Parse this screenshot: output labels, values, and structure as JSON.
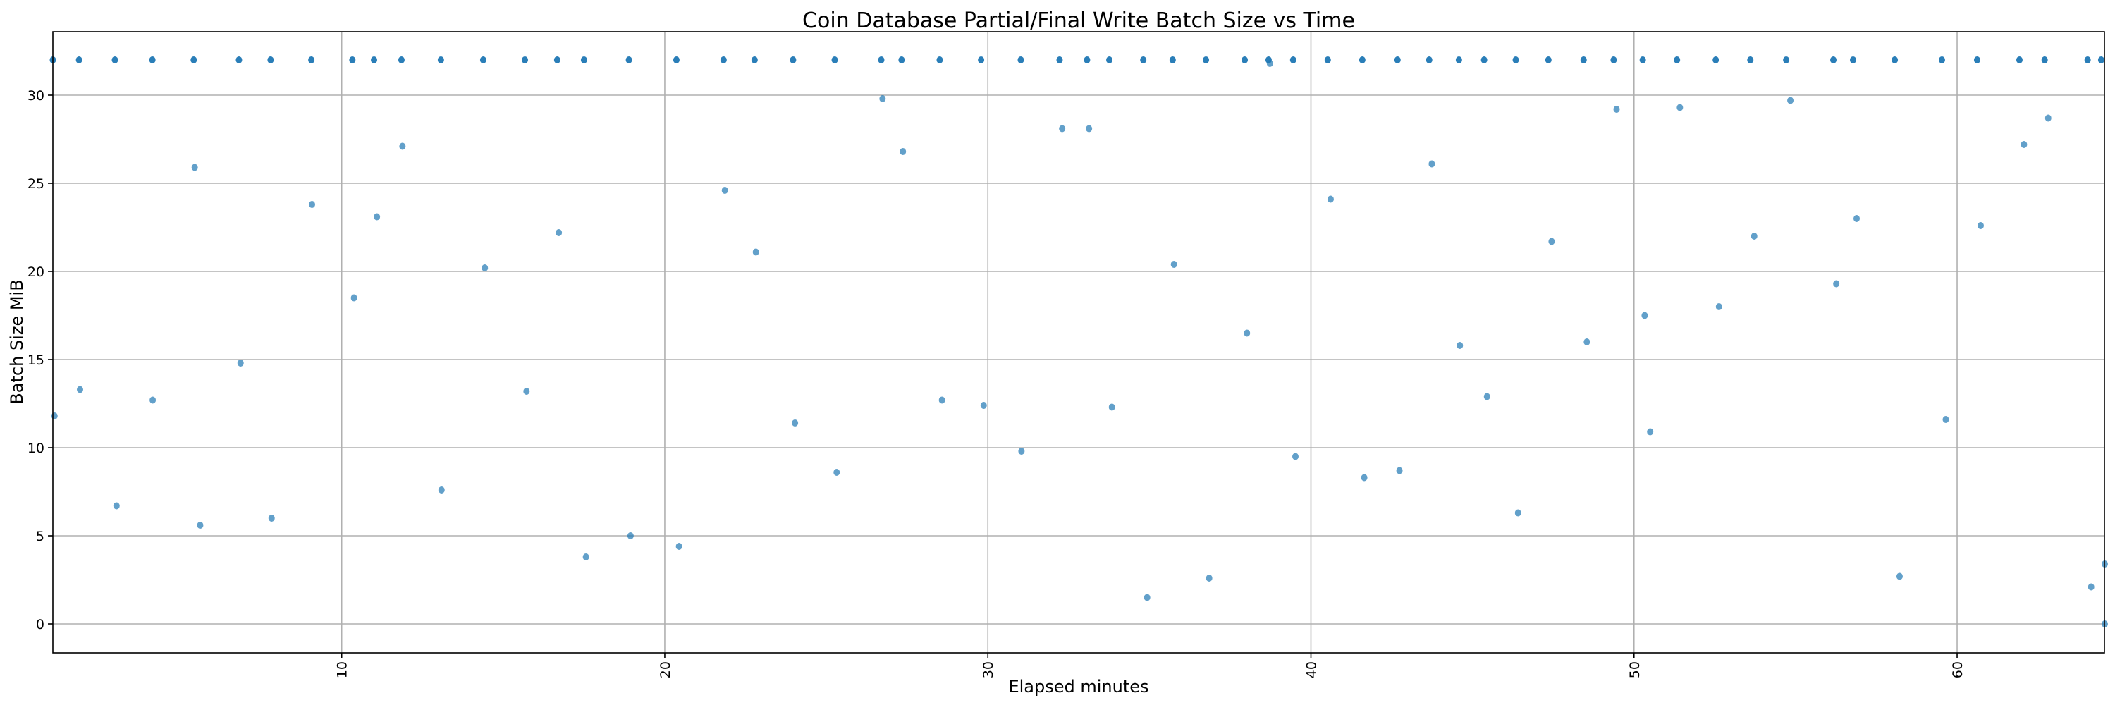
{
  "chart_data": {
    "type": "scatter",
    "title": "Coin Database Partial/Final Write Batch Size vs Time",
    "xlabel": "Elapsed minutes",
    "ylabel": "Batch Size MiB",
    "xlim": [
      1.06,
      64.56
    ],
    "ylim": [
      -1.64,
      33.6
    ],
    "xticks": [
      10,
      20,
      30,
      40,
      50,
      60
    ],
    "yticks": [
      0,
      5,
      10,
      15,
      20,
      25,
      30
    ],
    "grid": true,
    "legend": "none",
    "color": "#1f77b4",
    "points": [
      [
        1.06,
        32
      ],
      [
        1.87,
        32
      ],
      [
        2.98,
        32
      ],
      [
        4.14,
        32
      ],
      [
        5.42,
        32
      ],
      [
        6.82,
        32
      ],
      [
        7.8,
        32
      ],
      [
        9.06,
        32
      ],
      [
        10.33,
        32
      ],
      [
        11.0,
        32
      ],
      [
        11.85,
        32
      ],
      [
        13.07,
        32
      ],
      [
        14.38,
        32
      ],
      [
        15.67,
        32
      ],
      [
        16.67,
        32
      ],
      [
        17.5,
        32
      ],
      [
        18.89,
        32
      ],
      [
        20.36,
        32
      ],
      [
        21.82,
        32
      ],
      [
        22.78,
        32
      ],
      [
        23.97,
        32
      ],
      [
        25.26,
        32
      ],
      [
        26.7,
        32
      ],
      [
        27.33,
        32
      ],
      [
        28.51,
        32
      ],
      [
        29.79,
        32
      ],
      [
        31.02,
        32
      ],
      [
        32.22,
        32
      ],
      [
        33.07,
        32
      ],
      [
        33.76,
        32
      ],
      [
        34.81,
        32
      ],
      [
        35.72,
        32
      ],
      [
        36.75,
        32
      ],
      [
        37.95,
        32
      ],
      [
        38.69,
        32
      ],
      [
        39.45,
        32
      ],
      [
        40.52,
        32
      ],
      [
        41.59,
        32
      ],
      [
        42.68,
        32
      ],
      [
        43.66,
        32
      ],
      [
        44.58,
        32
      ],
      [
        45.36,
        32
      ],
      [
        46.34,
        32
      ],
      [
        47.35,
        32
      ],
      [
        48.44,
        32
      ],
      [
        49.37,
        32
      ],
      [
        50.27,
        32
      ],
      [
        51.33,
        32
      ],
      [
        52.53,
        32
      ],
      [
        53.6,
        32
      ],
      [
        54.71,
        32
      ],
      [
        56.17,
        32
      ],
      [
        56.78,
        32
      ],
      [
        58.07,
        32
      ],
      [
        59.53,
        32
      ],
      [
        60.62,
        32
      ],
      [
        61.93,
        32
      ],
      [
        62.71,
        32
      ],
      [
        64.04,
        32
      ],
      [
        64.46,
        32
      ],
      [
        1.11,
        11.8
      ],
      [
        1.9,
        13.3
      ],
      [
        3.03,
        6.7
      ],
      [
        4.15,
        12.7
      ],
      [
        5.45,
        25.9
      ],
      [
        5.62,
        5.6
      ],
      [
        6.87,
        14.8
      ],
      [
        7.83,
        6.0
      ],
      [
        9.08,
        23.8
      ],
      [
        10.38,
        18.5
      ],
      [
        11.09,
        23.1
      ],
      [
        11.88,
        27.1
      ],
      [
        13.09,
        7.6
      ],
      [
        14.43,
        20.2
      ],
      [
        15.72,
        13.2
      ],
      [
        16.72,
        22.2
      ],
      [
        17.56,
        3.8
      ],
      [
        18.94,
        5.0
      ],
      [
        20.44,
        4.4
      ],
      [
        21.86,
        24.6
      ],
      [
        22.82,
        21.1
      ],
      [
        24.03,
        11.4
      ],
      [
        25.32,
        8.6
      ],
      [
        26.74,
        29.8
      ],
      [
        27.37,
        26.8
      ],
      [
        28.58,
        12.7
      ],
      [
        29.87,
        12.4
      ],
      [
        31.04,
        9.8
      ],
      [
        32.3,
        28.1
      ],
      [
        33.13,
        28.1
      ],
      [
        33.84,
        12.3
      ],
      [
        34.93,
        1.5
      ],
      [
        35.76,
        20.4
      ],
      [
        36.85,
        2.6
      ],
      [
        38.02,
        16.5
      ],
      [
        38.73,
        31.8
      ],
      [
        39.52,
        9.5
      ],
      [
        40.61,
        24.1
      ],
      [
        41.65,
        8.3
      ],
      [
        42.74,
        8.7
      ],
      [
        43.74,
        26.1
      ],
      [
        44.61,
        15.8
      ],
      [
        45.45,
        12.9
      ],
      [
        46.41,
        6.3
      ],
      [
        47.45,
        21.7
      ],
      [
        48.54,
        16.0
      ],
      [
        49.46,
        29.2
      ],
      [
        50.33,
        17.5
      ],
      [
        50.5,
        10.9
      ],
      [
        51.42,
        29.3
      ],
      [
        52.63,
        18.0
      ],
      [
        53.72,
        22.0
      ],
      [
        54.84,
        29.7
      ],
      [
        56.26,
        19.3
      ],
      [
        56.89,
        23.0
      ],
      [
        58.22,
        2.7
      ],
      [
        59.65,
        11.6
      ],
      [
        60.73,
        22.6
      ],
      [
        62.07,
        27.2
      ],
      [
        62.82,
        28.7
      ],
      [
        64.15,
        2.1
      ],
      [
        64.57,
        3.4
      ],
      [
        64.57,
        0.0
      ]
    ]
  }
}
